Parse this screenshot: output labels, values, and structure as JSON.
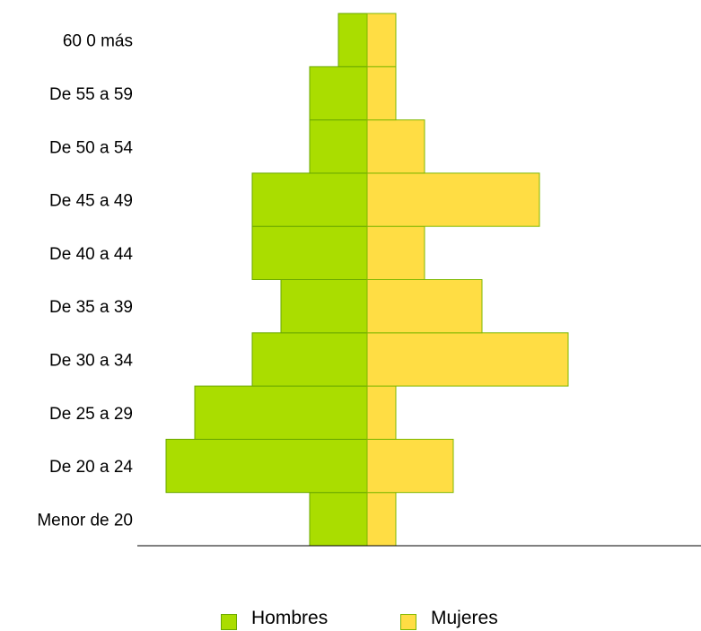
{
  "chart_data": {
    "type": "bar",
    "orientation": "horizontal-population-pyramid",
    "categories": [
      "Menor de 20",
      "De 20 a 24",
      "De 25 a 29",
      "De 30 a 34",
      "De 35 a 39",
      "De 40 a 44",
      "De 45 a 49",
      "De 50 a  54",
      "De 55 a 59",
      "60 0 más"
    ],
    "series": [
      {
        "name": "Hombres",
        "values": [
          2,
          7,
          6,
          4,
          3,
          4,
          4,
          2,
          2,
          1
        ],
        "color": "#aadd00",
        "stroke": "#6aa800",
        "direction": "left"
      },
      {
        "name": "Mujeres",
        "values": [
          1,
          3,
          1,
          7,
          4,
          2,
          6,
          2,
          1,
          1
        ],
        "color": "#ffdd44",
        "stroke": "#7fb800",
        "direction": "right"
      }
    ],
    "xlim": [
      -7,
      7
    ],
    "grid": false,
    "legend_position": "bottom-center"
  }
}
